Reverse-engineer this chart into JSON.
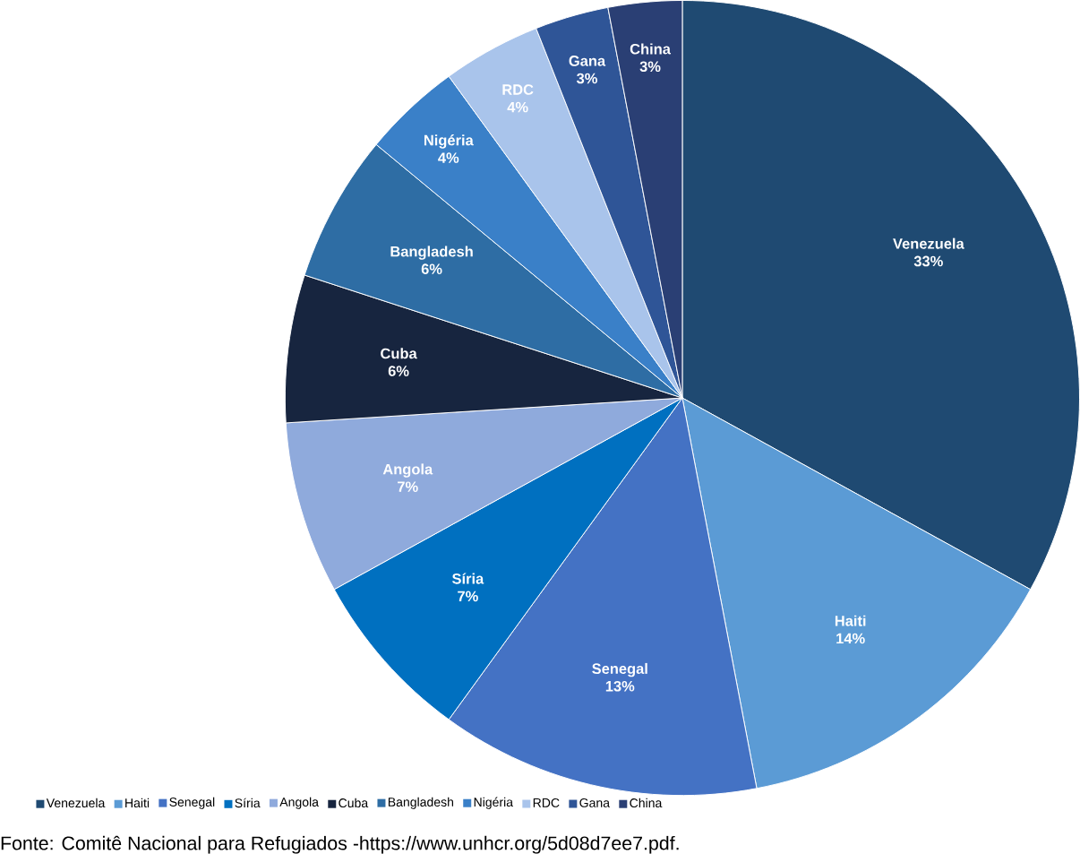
{
  "chart_data": {
    "type": "pie",
    "categories": [
      "Venezuela",
      "Haiti",
      "Senegal",
      "Síria",
      "Angola",
      "Cuba",
      "Bangladesh",
      "Nigéria",
      "RDC",
      "Gana",
      "China"
    ],
    "values": [
      33,
      14,
      13,
      7,
      7,
      6,
      6,
      4,
      4,
      3,
      3
    ],
    "value_labels": [
      "33%",
      "14%",
      "13%",
      "7%",
      "7%",
      "6%",
      "6%",
      "4%",
      "4%",
      "3%",
      "3%"
    ],
    "colors": [
      "#1f4a72",
      "#5b9bd5",
      "#4472c4",
      "#0070c0",
      "#8faadc",
      "#17253f",
      "#2e6da4",
      "#3a80c8",
      "#a9c4eb",
      "#2f5597",
      "#2a3f74"
    ],
    "legend": "bottom",
    "annotations": [
      "Fonte: Comitê Nacional para Refugiados -https://www.unhcr.org/5d08d7ee7.pdf."
    ]
  }
}
